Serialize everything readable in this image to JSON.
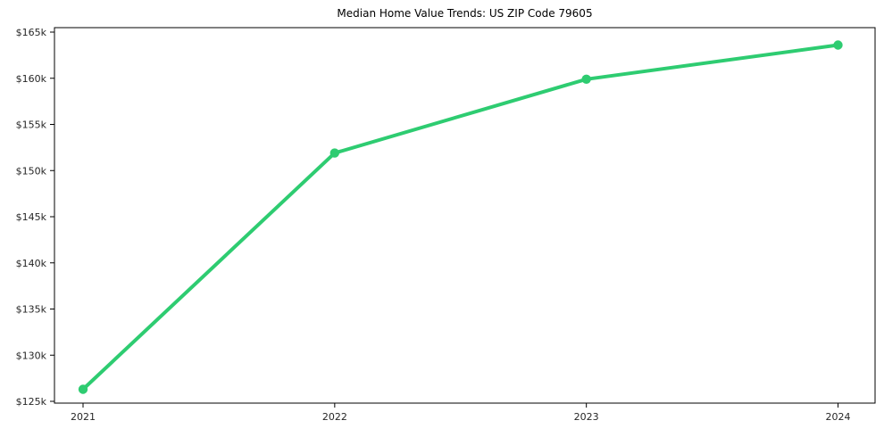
{
  "chart_data": {
    "type": "line",
    "title": "Median Home Value Trends: US ZIP Code 79605",
    "xlabel": "",
    "ylabel": "",
    "x_labels": [
      "2021",
      "2022",
      "2023",
      "2024"
    ],
    "series": [
      {
        "name": "Median Home Value",
        "values": [
          126300,
          151900,
          159900,
          163600
        ]
      }
    ],
    "ylim": [
      125000,
      165000
    ],
    "ytick_step": 5000,
    "ytick_labels": [
      "$125k",
      "$130k",
      "$135k",
      "$140k",
      "$145k",
      "$150k",
      "$155k",
      "$160k",
      "$165k"
    ],
    "grid": false,
    "legend": false,
    "legend_position": "none",
    "colors": {
      "line": "#2ecc71",
      "marker": "#2ecc71",
      "spine": "#000000",
      "tick": "#000000",
      "tick_label": "#262626",
      "title": "#000000",
      "background": "#ffffff"
    }
  }
}
